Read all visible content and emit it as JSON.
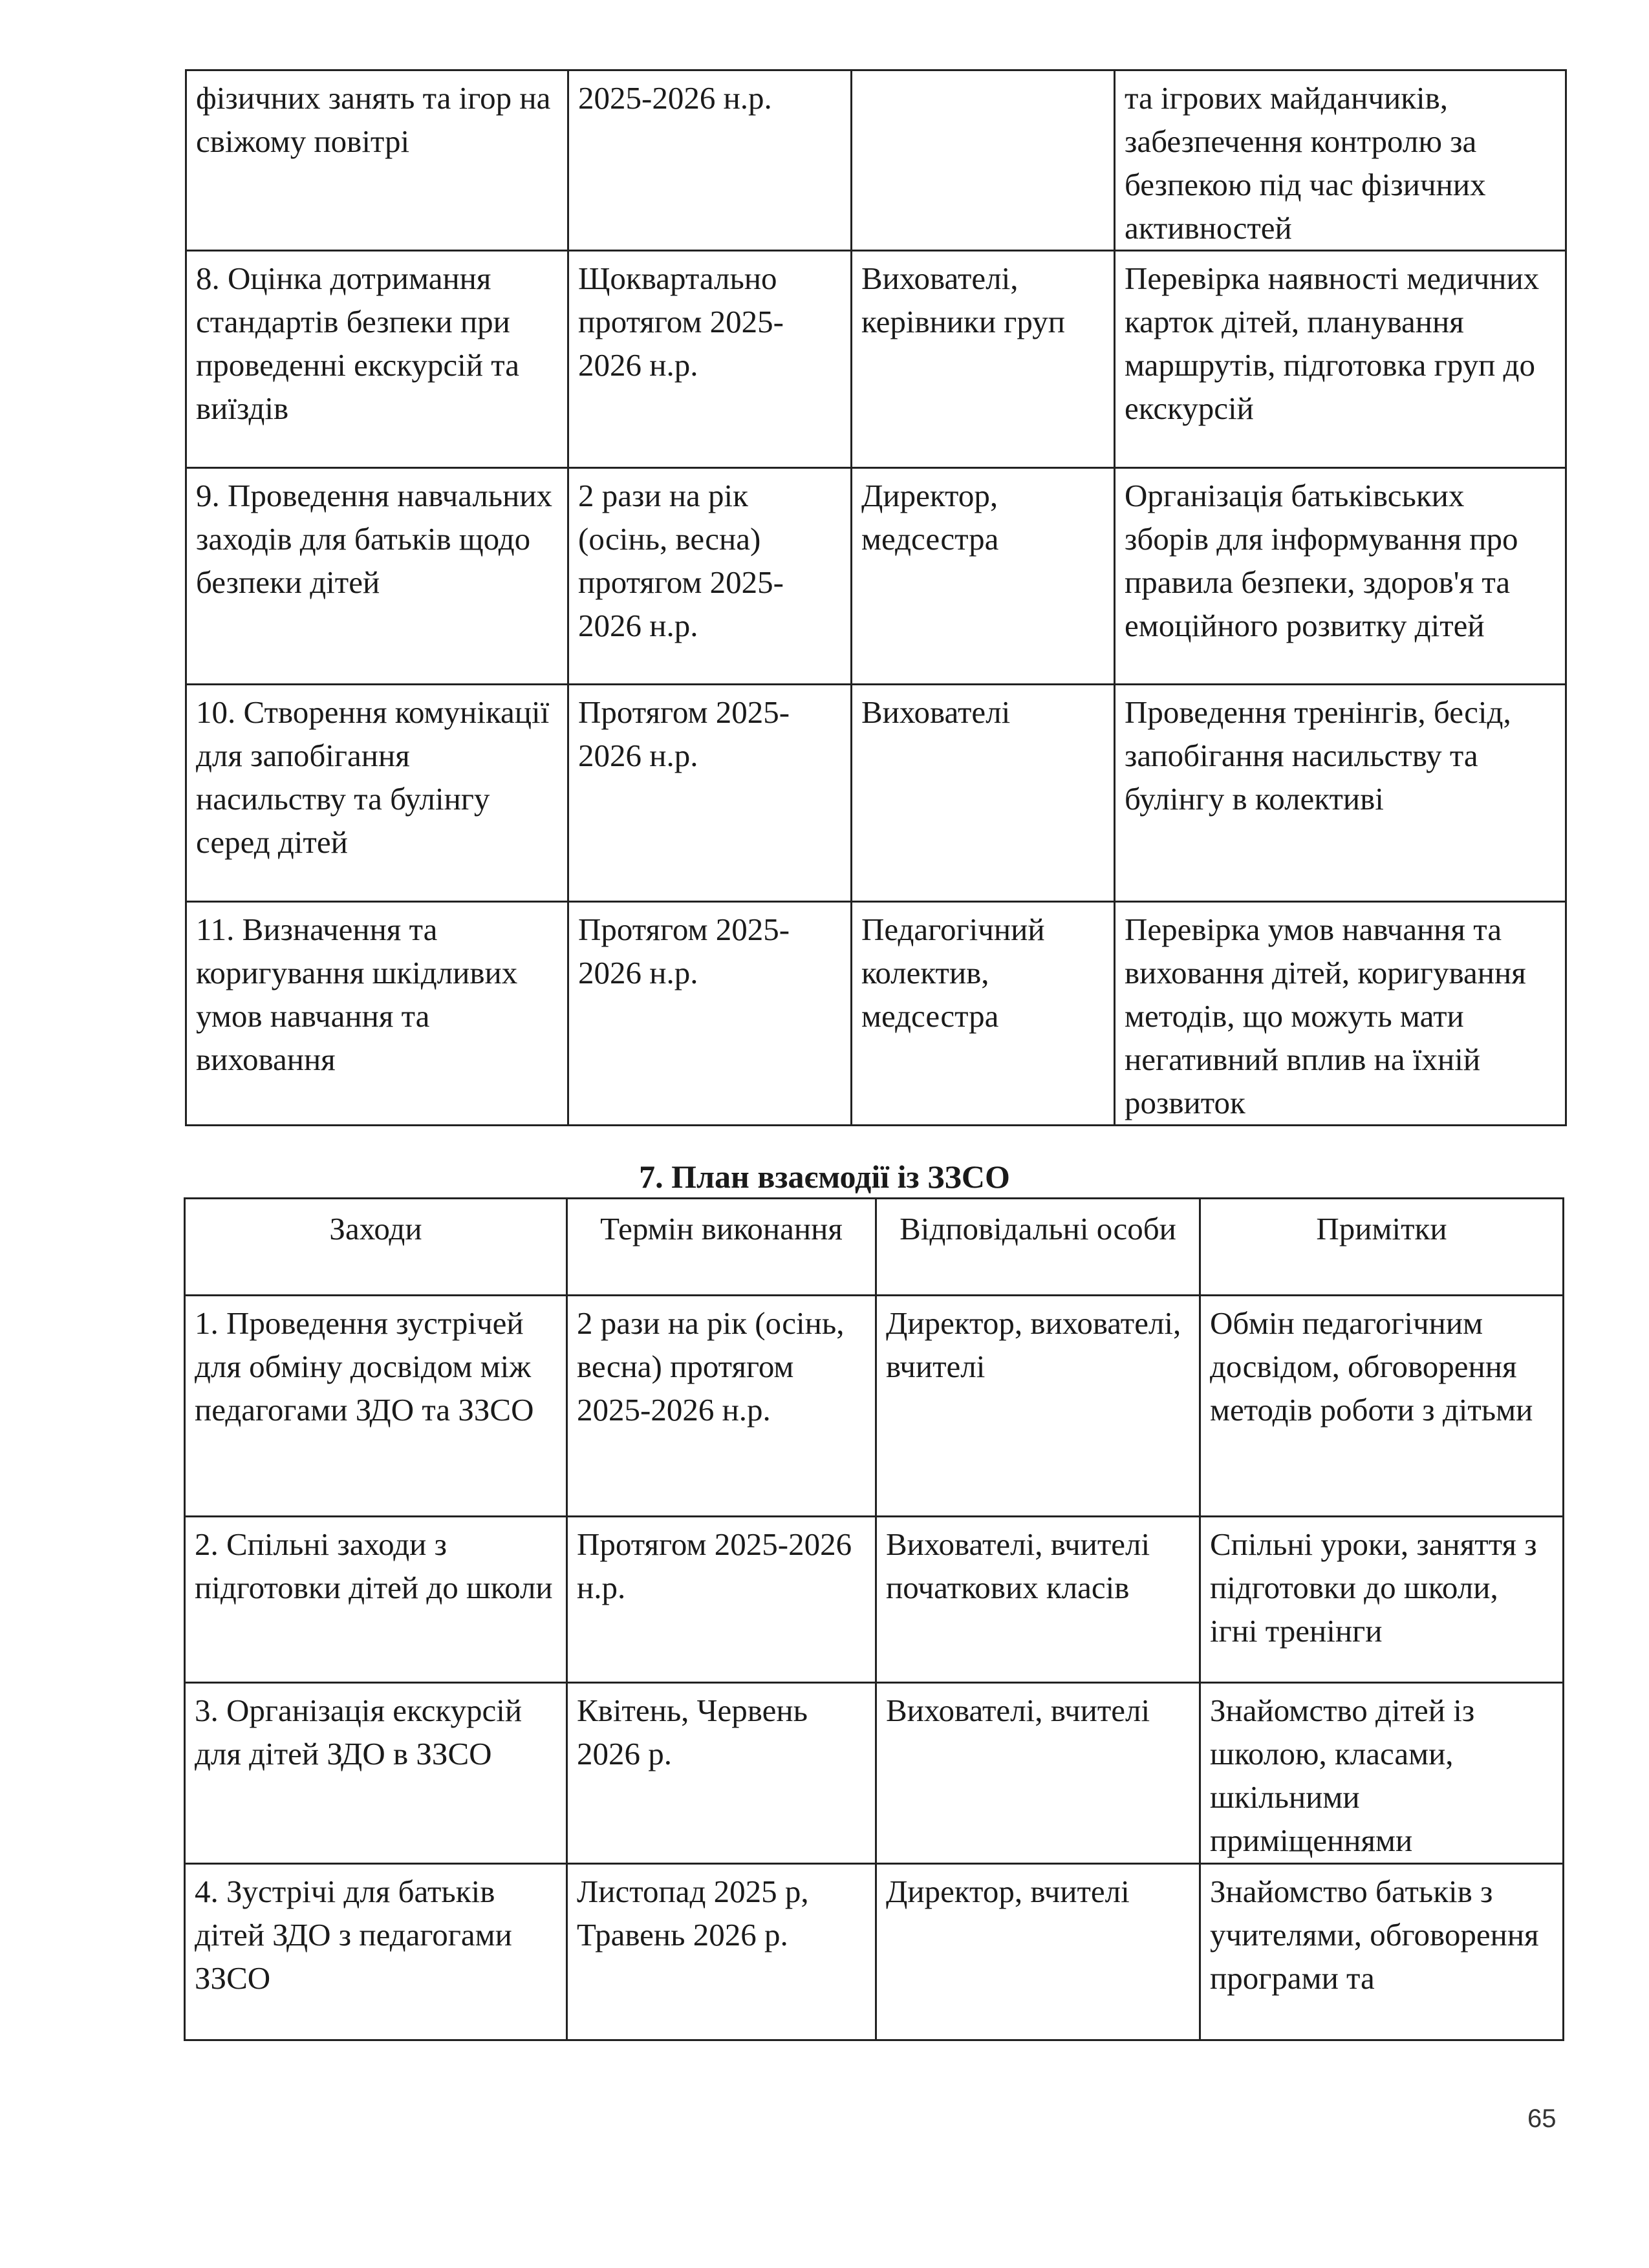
{
  "table1": {
    "rows": [
      [
        "фізичних занять та ігор на свіжому повітрі",
        "2025-2026 н.р.",
        "",
        "та ігрових майданчиків, забезпечення контролю за безпекою під час фізичних активностей"
      ],
      [
        "8. Оцінка дотримання стандартів безпеки при проведенні екскурсій та виїздів",
        "Щоквартально протягом 2025-2026 н.р.",
        "Вихователі, керівники груп",
        "Перевірка наявності медичних карток дітей, планування маршрутів, підготовка груп до екскурсій"
      ],
      [
        "9. Проведення навчальних заходів для батьків щодо безпеки дітей",
        "2 рази на рік (осінь, весна) протягом 2025-2026 н.р.",
        "Директор, медсестра",
        "Організація батьківських зборів для інформування про правила безпеки, здоров'я та емоційного розвитку дітей"
      ],
      [
        "10. Створення комунікації для запобігання насильству та булінгу серед дітей",
        "Протягом 2025-2026 н.р.",
        "Вихователі",
        "Проведення тренінгів, бесід, запобігання насильству та булінгу в колективі"
      ],
      [
        "11. Визначення та коригування шкідливих умов навчання та виховання",
        "Протягом 2025-2026 н.р.",
        "Педагогічний колектив, медсестра",
        "Перевірка умов навчання та виховання дітей, коригування методів, що можуть мати негативний вплив на їхній розвиток"
      ]
    ]
  },
  "section_title": "7.  План взаємодії із ЗЗСО",
  "table2": {
    "headers": [
      "Заходи",
      "Термін виконання",
      "Відповідальні особи",
      "Примітки"
    ],
    "rows": [
      [
        "1. Проведення зустрічей для обміну досвідом між педагогами ЗДО та ЗЗСО",
        "2 рази на рік (осінь, весна) протягом 2025-2026 н.р.",
        "Директор, вихователі, вчителі",
        "Обмін педагогічним досвідом, обговорення методів роботи з дітьми"
      ],
      [
        "2. Спільні заходи з підготовки дітей до школи",
        "Протягом 2025-2026 н.р.",
        "Вихователі, вчителі початкових класів",
        "Спільні уроки, заняття з підготовки до школи, ігні тренінги"
      ],
      [
        "3. Організація екскурсій для дітей ЗДО в ЗЗСО",
        "Квітень, Червень 2026 р.",
        "Вихователі, вчителі",
        "Знайомство дітей із школою, класами, шкільними приміщеннями"
      ],
      [
        "4. Зустрічі для батьків дітей ЗДО з педагогами ЗЗСО",
        "Листопад 2025 р, Травень 2026 р.",
        "Директор, вчителі",
        "Знайомство батьків з учителями, обговорення програми та"
      ]
    ]
  },
  "page_number": "65"
}
